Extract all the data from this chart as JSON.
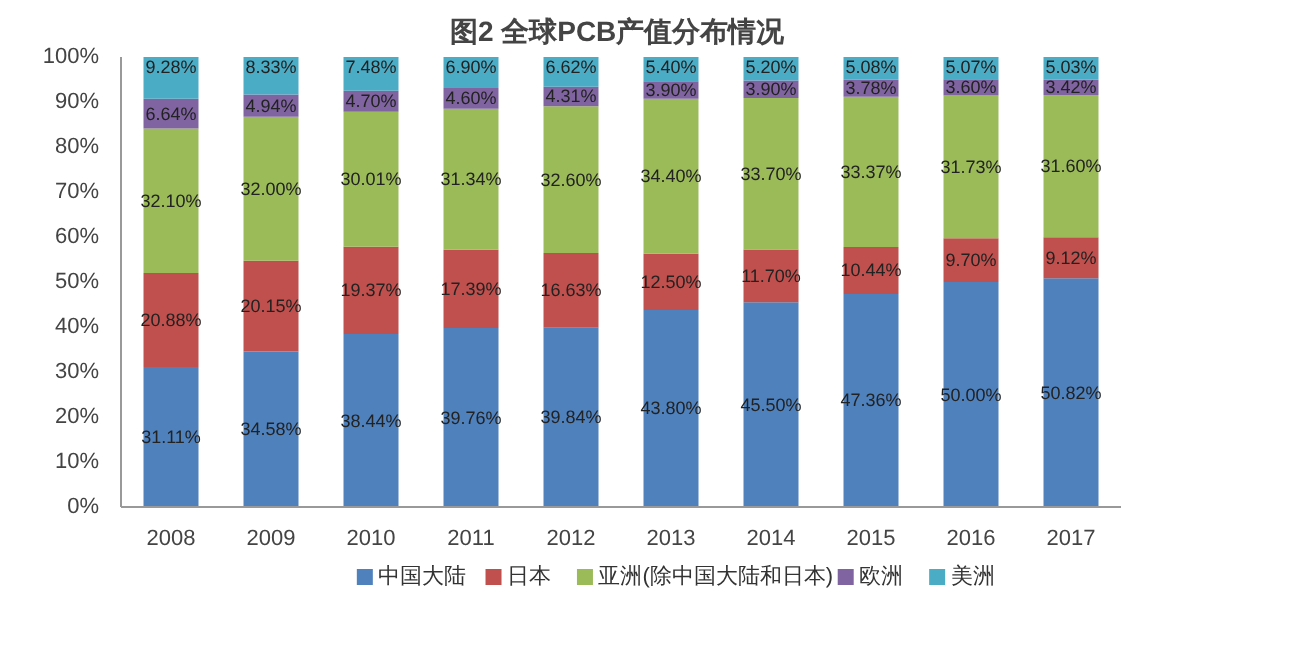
{
  "chart_data": {
    "type": "bar",
    "stacked": true,
    "title": "图2  全球PCB产值分布情况",
    "categories": [
      "2008",
      "2009",
      "2010",
      "2011",
      "2012",
      "2013",
      "2014",
      "2015",
      "2016",
      "2017"
    ],
    "series": [
      {
        "name": "中国大陆",
        "color": "#4f81bd",
        "values": [
          31.11,
          34.58,
          38.44,
          39.76,
          39.84,
          43.8,
          45.5,
          47.36,
          50.0,
          50.82
        ],
        "value_labels": [
          "31.11%",
          "34.58%",
          "38.44%",
          "39.76%",
          "39.84%",
          "43.80%",
          "45.50%",
          "47.36%",
          "50.00%",
          "50.82%"
        ]
      },
      {
        "name": "日本",
        "color": "#c0504d",
        "values": [
          20.88,
          20.15,
          19.37,
          17.39,
          16.63,
          12.5,
          11.7,
          10.44,
          9.7,
          9.12
        ],
        "value_labels": [
          "20.88%",
          "20.15%",
          "19.37%",
          "17.39%",
          "16.63%",
          "12.50%",
          "11.70%",
          "10.44%",
          "9.70%",
          "9.12%"
        ]
      },
      {
        "name": "亚洲(除中国大陆和日本)",
        "color": "#9bbb59",
        "values": [
          32.1,
          32.0,
          30.01,
          31.34,
          32.6,
          34.4,
          33.7,
          33.37,
          31.73,
          31.6
        ],
        "value_labels": [
          "32.10%",
          "32.00%",
          "30.01%",
          "31.34%",
          "32.60%",
          "34.40%",
          "33.70%",
          "33.37%",
          "31.73%",
          "31.60%"
        ]
      },
      {
        "name": "欧洲",
        "color": "#8064a2",
        "values": [
          6.64,
          4.94,
          4.7,
          4.6,
          4.31,
          3.9,
          3.9,
          3.78,
          3.6,
          3.42
        ],
        "value_labels": [
          "6.64%",
          "4.94%",
          "4.70%",
          "4.60%",
          "4.31%",
          "3.90%",
          "3.90%",
          "3.78%",
          "3.60%",
          "3.42%"
        ]
      },
      {
        "name": "美洲",
        "color": "#4bacc6",
        "values": [
          9.28,
          8.33,
          7.48,
          6.9,
          6.62,
          5.4,
          5.2,
          5.08,
          5.07,
          5.03
        ],
        "value_labels": [
          "9.28%",
          "8.33%",
          "7.48%",
          "6.90%",
          "6.62%",
          "5.40%",
          "5.20%",
          "5.08%",
          "5.07%",
          "5.03%"
        ]
      }
    ],
    "ylim": [
      0,
      100
    ],
    "yticks": [
      {
        "value": 0,
        "label": "0%"
      },
      {
        "value": 10,
        "label": "10%"
      },
      {
        "value": 20,
        "label": "20%"
      },
      {
        "value": 30,
        "label": "30%"
      },
      {
        "value": 40,
        "label": "40%"
      },
      {
        "value": 50,
        "label": "50%"
      },
      {
        "value": 60,
        "label": "60%"
      },
      {
        "value": 70,
        "label": "70%"
      },
      {
        "value": 80,
        "label": "80%"
      },
      {
        "value": 90,
        "label": "90%"
      },
      {
        "value": 100,
        "label": "100%"
      }
    ],
    "grid": false,
    "legend": "bottom"
  }
}
